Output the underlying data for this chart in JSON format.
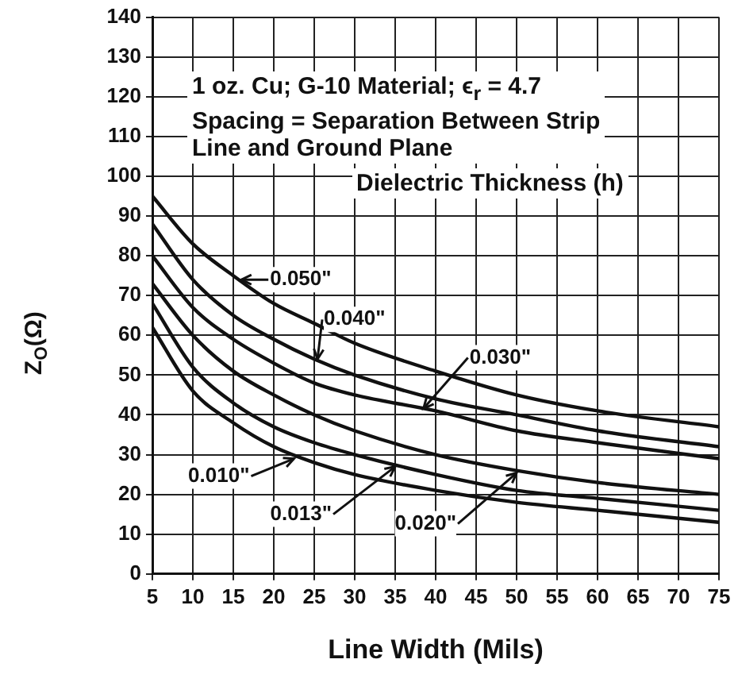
{
  "chart_data": {
    "type": "line",
    "xlabel": "Line Width (Mils)",
    "ylabel": "Z$_{O}$(Ω)",
    "x": [
      5,
      10,
      15,
      20,
      25,
      30,
      40,
      50,
      60,
      75
    ],
    "xlim": [
      5,
      75
    ],
    "xticks": [
      5,
      10,
      15,
      20,
      25,
      30,
      35,
      40,
      45,
      50,
      55,
      60,
      65,
      70,
      75
    ],
    "ylim": [
      0,
      140
    ],
    "yticks": [
      0,
      10,
      20,
      30,
      40,
      50,
      60,
      70,
      80,
      90,
      100,
      110,
      120,
      130,
      140
    ],
    "grid": true,
    "legend": false,
    "marker": "none",
    "line_style": "solid",
    "series": [
      {
        "color": "#111111",
        "values": [
          95,
          83,
          75,
          68,
          63,
          58,
          51,
          45,
          41,
          37
        ]
      },
      {
        "color": "#111111",
        "values": [
          88,
          74,
          65,
          59,
          54,
          50,
          44,
          40,
          36,
          32
        ]
      },
      {
        "color": "#111111",
        "values": [
          80,
          67,
          59,
          53,
          48,
          45,
          41,
          36,
          33,
          29
        ]
      },
      {
        "color": "#111111",
        "values": [
          73,
          60,
          51,
          45,
          40,
          36,
          30,
          26,
          23,
          20
        ]
      },
      {
        "color": "#111111",
        "values": [
          68,
          52,
          43,
          37,
          33,
          30,
          25,
          21,
          19,
          16
        ]
      },
      {
        "color": "#111111",
        "values": [
          62,
          46,
          38,
          32,
          28,
          25,
          21,
          18,
          16,
          13
        ]
      }
    ],
    "annotations": [
      "1 oz. Cu; G-10 Material; ϵ$_{r}$ = 4.7",
      "Spacing = Separation Between Strip",
      "Line and Ground Plane",
      "Dielectric Thickness (h)",
      {
        "text": "0.050\"",
        "x": 16,
        "y": 74
      },
      {
        "text": "0.040\"",
        "x": 25.4,
        "y": 54
      },
      {
        "text": "0.030\"",
        "x": 38.5,
        "y": 41.6
      },
      {
        "text": "0.010\"",
        "x": 22.5,
        "y": 29
      },
      {
        "text": "0.013\"",
        "x": 35,
        "y": 27
      },
      {
        "text": "0.020\"",
        "x": 50,
        "y": 25.4
      }
    ]
  }
}
